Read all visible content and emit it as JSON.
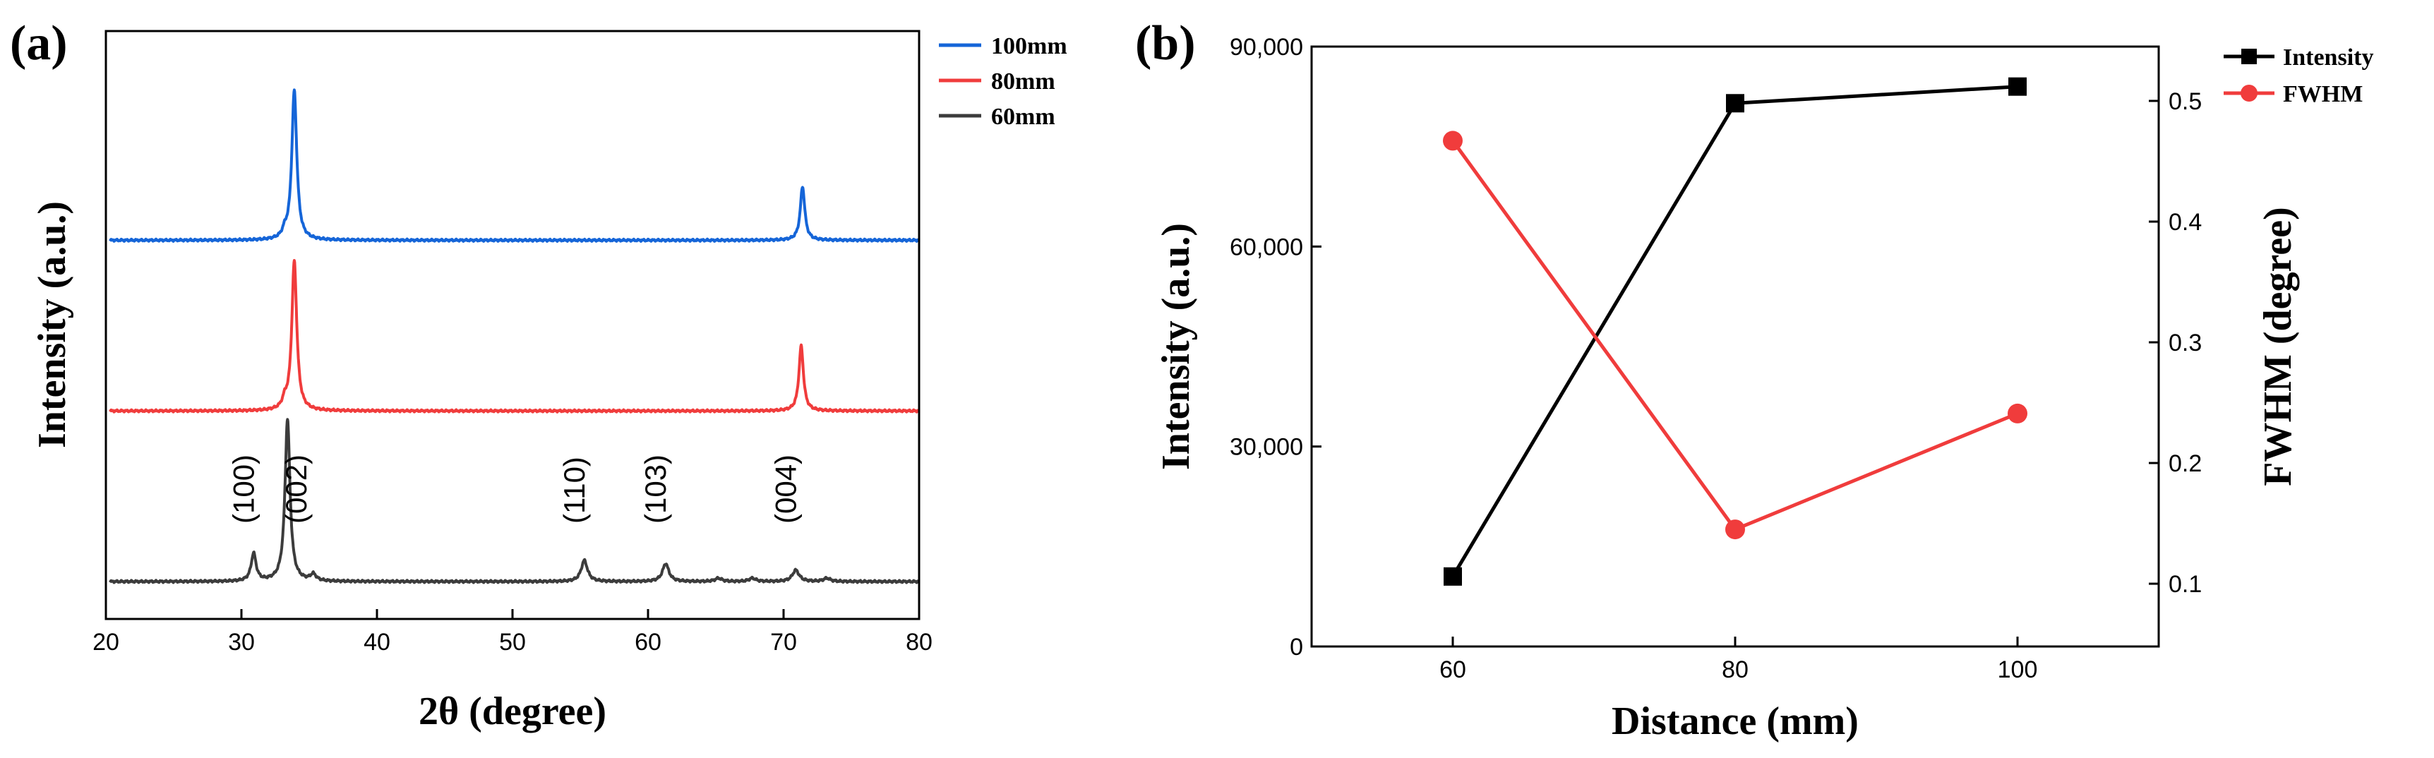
{
  "chart_data": [
    {
      "type": "line",
      "panel_label": "(a)",
      "xlabel": "2θ (degree)",
      "ylabel": "Intensity (a.u.)",
      "xlim": [
        20,
        80
      ],
      "xticks": [
        "20",
        "30",
        "40",
        "50",
        "60",
        "70",
        "80"
      ],
      "y_ticks_shown": false,
      "legend_position": "outside-top-right",
      "series": [
        {
          "name": "100mm",
          "color": "#1565d8",
          "baseline": 0.62,
          "peaks": [
            {
              "two_theta": 33.9,
              "height": 0.92,
              "width": 0.22
            },
            {
              "two_theta": 33.2,
              "height": 0.04,
              "width": 0.2
            },
            {
              "two_theta": 71.4,
              "height": 0.33,
              "width": 0.2
            }
          ]
        },
        {
          "name": "80mm",
          "color": "#f03c3c",
          "baseline": 0.31,
          "peaks": [
            {
              "two_theta": 33.9,
              "height": 0.92,
              "width": 0.22
            },
            {
              "two_theta": 33.2,
              "height": 0.05,
              "width": 0.2
            },
            {
              "two_theta": 71.3,
              "height": 0.4,
              "width": 0.2
            }
          ]
        },
        {
          "name": "60mm",
          "color": "#3c3c3c",
          "baseline": 0.0,
          "peaks": [
            {
              "two_theta": 30.9,
              "height": 0.17,
              "width": 0.22
            },
            {
              "two_theta": 33.4,
              "height": 1.0,
              "width": 0.22
            },
            {
              "two_theta": 35.3,
              "height": 0.04,
              "width": 0.25
            },
            {
              "two_theta": 55.3,
              "height": 0.13,
              "width": 0.28
            },
            {
              "two_theta": 61.3,
              "height": 0.11,
              "width": 0.28
            },
            {
              "two_theta": 65.2,
              "height": 0.02,
              "width": 0.3
            },
            {
              "two_theta": 67.7,
              "height": 0.02,
              "width": 0.3
            },
            {
              "two_theta": 70.9,
              "height": 0.07,
              "width": 0.3
            },
            {
              "two_theta": 73.2,
              "height": 0.02,
              "width": 0.3
            }
          ]
        }
      ],
      "annotations": [
        {
          "text": "(100)",
          "two_theta": 30.9
        },
        {
          "text": "(002)",
          "two_theta": 34.8
        },
        {
          "text": "(110)",
          "two_theta": 55.3
        },
        {
          "text": "(103)",
          "two_theta": 61.3
        },
        {
          "text": "(004)",
          "two_theta": 70.9
        }
      ]
    },
    {
      "type": "line",
      "panel_label": "(b)",
      "xlabel": "Distance (mm)",
      "ylabel": "Intensity (a.u.)",
      "y2label": "FWHM (degree)",
      "x": [
        60,
        80,
        100
      ],
      "xlim": [
        50,
        110
      ],
      "xticks": [
        "60",
        "80",
        "100"
      ],
      "ylim": [
        0,
        90000
      ],
      "yticks": [
        0,
        30000,
        60000,
        90000
      ],
      "ytick_labels": [
        "0",
        "30,000",
        "60,000",
        "90,000"
      ],
      "y2lim": [
        0.048,
        0.545
      ],
      "y2ticks": [
        0.1,
        0.2,
        0.3,
        0.4,
        0.5
      ],
      "y2tick_labels": [
        "0.1",
        "0.2",
        "0.3",
        "0.4",
        "0.5"
      ],
      "legend_position": "outside-top-right",
      "series": [
        {
          "name": "Intensity",
          "axis": "left",
          "marker": "square",
          "color": "#000000",
          "values": [
            10500,
            81500,
            84000
          ]
        },
        {
          "name": "FWHM",
          "axis": "right",
          "marker": "circle",
          "color": "#f03c3c",
          "values": [
            0.467,
            0.145,
            0.241
          ]
        }
      ]
    }
  ]
}
